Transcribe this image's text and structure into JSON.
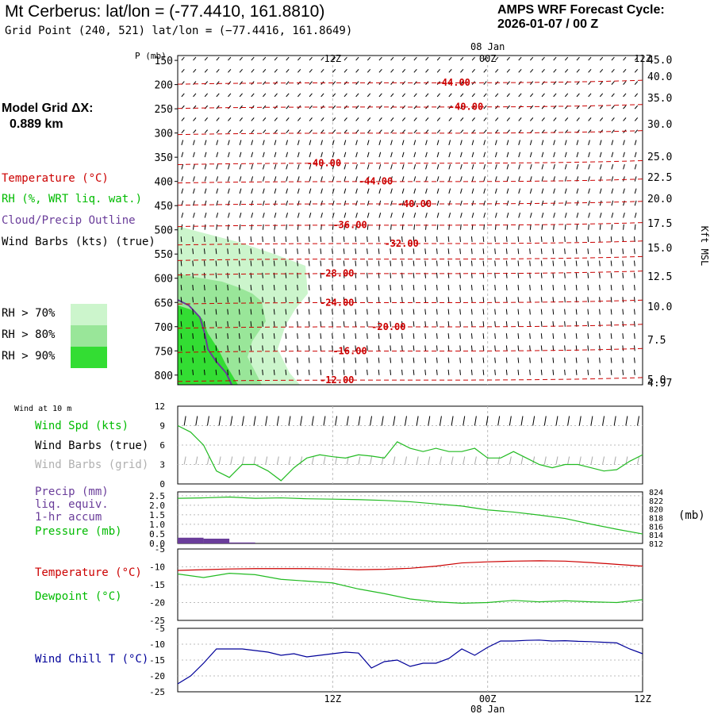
{
  "header": {
    "station_line": "Mt Cerberus:  lat/lon = (-77.4410, 161.8810)",
    "grid_line": "Grid Point (240, 521) lat/lon = (−77.4416, 161.8649)",
    "cycle_label": "AMPS WRF Forecast Cycle:",
    "cycle_value": "2026-01-07 / 00  Z"
  },
  "sidebar": {
    "model_grid_label": "Model Grid ΔX:",
    "model_grid_value": "0.889 km",
    "legend_temperature": "Temperature (°C)",
    "legend_rh": "RH (%, WRT liq. wat.)",
    "legend_cloud": "Cloud/Precip Outline",
    "legend_wind": "Wind Barbs (kts) (true)",
    "rh_levels": [
      "RH > 70%",
      "RH > 80%",
      "RH > 90%"
    ],
    "wind_10m_label": "Wind at 10 m",
    "wind_spd_label": "Wind Spd (kts)",
    "wind_barbs_true_label": "Wind Barbs (true)",
    "wind_barbs_grid_label": "Wind Barbs (grid)",
    "precip_line1": "Precip (mm)",
    "precip_line2": "liq. equiv.",
    "precip_line3": "1-hr accum",
    "pressure_label": "Pressure (mb)",
    "pressure_unit": "(mb)",
    "temperature_label": "Temperature (°C)",
    "dewpoint_label": "Dewpoint (°C)",
    "windchill_label": "Wind Chill T (°C)"
  },
  "colors": {
    "temperature": "#cc0000",
    "rh": "#00cc00",
    "cloud": "#6a3d9a",
    "pressure": "#22bb22",
    "windchill": "#000099",
    "rh70": "#ccf5cc",
    "rh80": "#99e699",
    "rh90": "#33dd33"
  },
  "chart_data": [
    {
      "type": "heatmap",
      "name_on_chart": "",
      "x_tick_labels": [
        "12Z",
        "00Z",
        "12Z"
      ],
      "x_top_date": "08 Jan",
      "ylabel": "P (mb)",
      "y_ticks": [
        150,
        200,
        250,
        300,
        350,
        400,
        450,
        500,
        550,
        600,
        650,
        700,
        750,
        800
      ],
      "ylim": [
        820,
        140
      ],
      "right_axis_label": "Kft MSL",
      "right_ticks": [
        "45.0",
        "40.0",
        "35.0",
        "30.0",
        "25.0",
        "22.5",
        "20.0",
        "17.5",
        "15.0",
        "12.5",
        "10.0",
        "7.5",
        "5.0",
        "4.97"
      ],
      "temperature_contours": [
        {
          "label": "-44.00",
          "pressure": 196,
          "x_hour": 20
        },
        {
          "label": "-40.00",
          "pressure": 246,
          "x_hour": 21
        },
        {
          "label": "-40.00",
          "pressure": 362,
          "x_hour": 10
        },
        {
          "label": "-44.00",
          "pressure": 400,
          "x_hour": 14
        },
        {
          "label": "-40.00",
          "pressure": 446,
          "x_hour": 17
        },
        {
          "label": "-36.00",
          "pressure": 490,
          "x_hour": 12
        },
        {
          "label": "-32.00",
          "pressure": 528,
          "x_hour": 16
        },
        {
          "label": "-28.00",
          "pressure": 590,
          "x_hour": 11
        },
        {
          "label": "-24.00",
          "pressure": 650,
          "x_hour": 11
        },
        {
          "label": "-20.00",
          "pressure": 700,
          "x_hour": 15
        },
        {
          "label": "-16.00",
          "pressure": 750,
          "x_hour": 12
        },
        {
          "label": "-12.00",
          "pressure": 810,
          "x_hour": 11
        }
      ]
    },
    {
      "type": "line",
      "ylabel": "",
      "y_ticks": [
        0,
        3,
        6,
        9,
        12
      ],
      "ylim": [
        0,
        12
      ],
      "x_hours": [
        0,
        1,
        2,
        3,
        4,
        5,
        6,
        7,
        8,
        9,
        10,
        11,
        12,
        13,
        14,
        15,
        16,
        17,
        18,
        19,
        20,
        21,
        22,
        23,
        24,
        25,
        26,
        27,
        28,
        29,
        30,
        31,
        32,
        33,
        34,
        35,
        36
      ],
      "series": [
        {
          "name": "Wind Spd (kts)",
          "values": [
            9,
            8,
            6,
            2,
            1,
            3,
            3,
            2,
            0.5,
            2.5,
            4,
            4.5,
            4.2,
            4,
            4.5,
            4.3,
            4,
            6.5,
            5.5,
            5,
            5.5,
            5,
            5,
            5.5,
            4,
            4,
            5,
            4,
            3,
            2.5,
            3,
            3,
            2.5,
            2,
            2.2,
            3.5,
            4.5
          ]
        }
      ]
    },
    {
      "type": "line",
      "y_ticks": [
        0.0,
        0.5,
        1.0,
        1.5,
        2.0,
        2.5
      ],
      "ylim": [
        0,
        2.7
      ],
      "right_ticks": [
        812,
        814,
        816,
        818,
        820,
        822,
        824
      ],
      "x_hours": [
        0,
        2,
        4,
        6,
        8,
        10,
        12,
        14,
        16,
        18,
        20,
        22,
        24,
        26,
        28,
        30,
        32,
        34,
        36
      ],
      "series": [
        {
          "name": "Pressure (mb)",
          "values": [
            822.5,
            822.6,
            822.8,
            822.5,
            822.6,
            822.4,
            822.3,
            822.2,
            822.0,
            821.7,
            821.2,
            820.7,
            819.8,
            819.3,
            818.6,
            817.8,
            816.5,
            815.3,
            814.2
          ]
        },
        {
          "name": "Precip (mm)",
          "values": [
            0.3,
            0.25,
            0.05,
            0,
            0,
            0,
            0,
            0,
            0,
            0,
            0,
            0,
            0,
            0,
            0,
            0,
            0,
            0,
            0
          ]
        }
      ]
    },
    {
      "type": "line",
      "y_ticks": [
        -5,
        -10,
        -15,
        -20,
        -25
      ],
      "ylim": [
        -25,
        -5
      ],
      "x_hours": [
        0,
        2,
        4,
        6,
        8,
        10,
        12,
        14,
        16,
        18,
        20,
        22,
        24,
        26,
        28,
        30,
        32,
        34,
        36
      ],
      "series": [
        {
          "name": "Temperature (°C)",
          "values": [
            -11,
            -10.8,
            -10.6,
            -10.5,
            -10.5,
            -10.5,
            -10.6,
            -10.8,
            -10.7,
            -10.4,
            -9.8,
            -8.9,
            -8.6,
            -8.4,
            -8.3,
            -8.4,
            -8.8,
            -9.3,
            -9.8
          ]
        },
        {
          "name": "Dewpoint (°C)",
          "values": [
            -12,
            -13,
            -11.8,
            -12.2,
            -13.5,
            -14,
            -14.5,
            -16.2,
            -17.5,
            -19,
            -19.8,
            -20.2,
            -20,
            -19.4,
            -19.8,
            -19.5,
            -19.8,
            -20,
            -19.2
          ]
        }
      ]
    },
    {
      "type": "line",
      "y_ticks": [
        -5,
        -10,
        -15,
        -20,
        -25
      ],
      "ylim": [
        -25,
        -5
      ],
      "x_hours": [
        0,
        1,
        2,
        3,
        4,
        5,
        6,
        7,
        8,
        9,
        10,
        11,
        12,
        13,
        14,
        15,
        16,
        17,
        18,
        19,
        20,
        21,
        22,
        23,
        24,
        25,
        26,
        27,
        28,
        29,
        30,
        31,
        32,
        33,
        34,
        35,
        36
      ],
      "series": [
        {
          "name": "Wind Chill T (°C)",
          "values": [
            -22.5,
            -20,
            -16,
            -11.5,
            -11.5,
            -11.5,
            -12,
            -12.5,
            -13.5,
            -13,
            -14,
            -13.5,
            -13,
            -12.5,
            -12.8,
            -17.5,
            -15.5,
            -15,
            -17,
            -16,
            -16,
            -14.5,
            -11.5,
            -13.5,
            -11,
            -9,
            -9,
            -8.8,
            -8.7,
            -9,
            -8.9,
            -9.1,
            -9.2,
            -9.4,
            -9.6,
            -11.5,
            -13
          ]
        }
      ]
    }
  ]
}
